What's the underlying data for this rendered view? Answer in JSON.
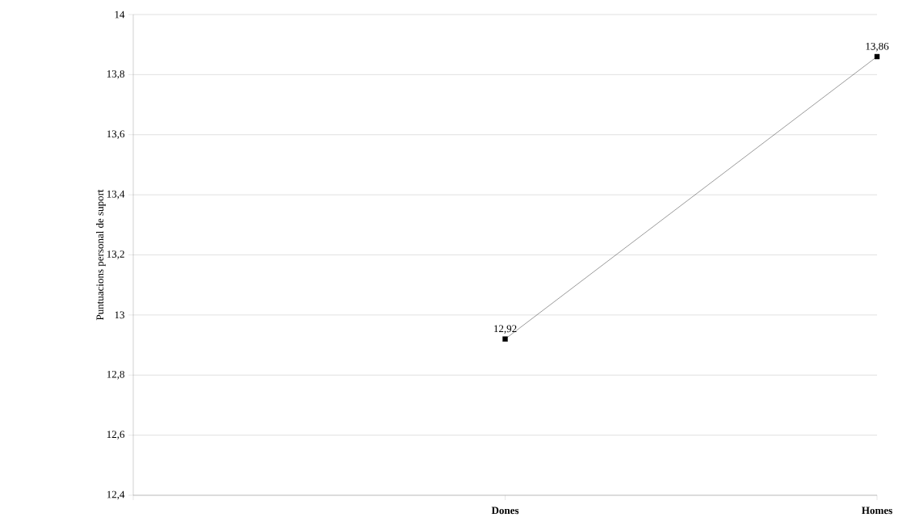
{
  "chart_data": {
    "type": "line",
    "ylabel": "Puntuacions personal de suport",
    "categories": [
      null,
      "Dones",
      "Homes"
    ],
    "values": [
      null,
      12.92,
      13.86
    ],
    "value_labels": [
      null,
      "12,92",
      "13,86"
    ],
    "color": "#000000",
    "marker": "square",
    "line_style": "solid",
    "ylim": [
      12.4,
      14
    ],
    "yticks": [
      {
        "value": 12.4,
        "label": "12,4"
      },
      {
        "value": 12.6,
        "label": "12,6"
      },
      {
        "value": 12.8,
        "label": "12,8"
      },
      13,
      {
        "value": 13.2,
        "label": "13,2"
      },
      {
        "value": 13.4,
        "label": "13,4"
      },
      {
        "value": 13.6,
        "label": "13,6"
      },
      {
        "value": 13.8,
        "label": "13,8"
      },
      14
    ],
    "grid": "y"
  }
}
